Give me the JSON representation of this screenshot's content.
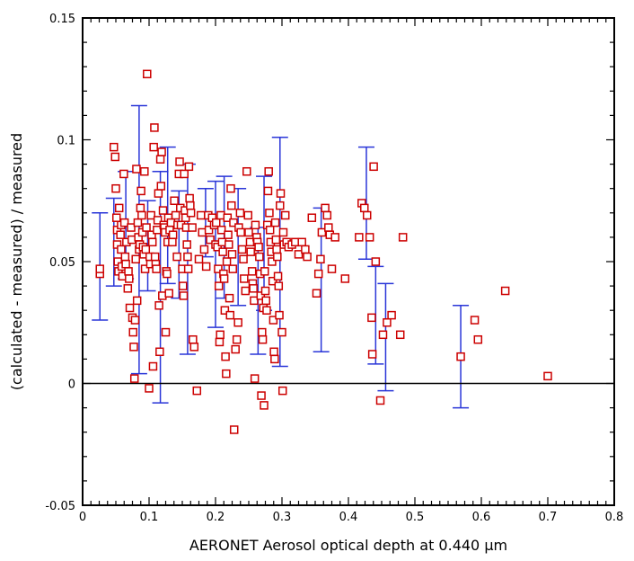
{
  "chart_data": {
    "type": "scatter",
    "title": "",
    "xlabel": "AERONET Aerosol optical depth at 0.440 µm",
    "ylabel": "(calculated - measured) / measured",
    "xlim": [
      0,
      0.8
    ],
    "ylim": [
      -0.05,
      0.15
    ],
    "xticks": [
      0,
      0.1,
      0.2,
      0.3,
      0.4,
      0.5,
      0.6,
      0.7,
      0.8
    ],
    "xtick_labels": [
      "0",
      "0.1",
      "0.2",
      "0.3",
      "0.4",
      "0.5",
      "0.6",
      "0.7",
      "0.8"
    ],
    "yticks": [
      -0.05,
      0,
      0.05,
      0.1,
      0.15
    ],
    "ytick_labels": [
      "-0.05",
      "0",
      "0.05",
      "0.1",
      "0.15"
    ],
    "grid": false,
    "zero_line": 0,
    "colors": {
      "points": "#cc0000",
      "error_bars": "#2a36d8",
      "axes": "#000000"
    },
    "error_bars": [
      {
        "x": 0.026,
        "low": 0.026,
        "high": 0.07
      },
      {
        "x": 0.047,
        "low": 0.04,
        "high": 0.076
      },
      {
        "x": 0.065,
        "low": 0.043,
        "high": 0.087
      },
      {
        "x": 0.085,
        "low": 0.004,
        "high": 0.114
      },
      {
        "x": 0.098,
        "low": 0.038,
        "high": 0.075
      },
      {
        "x": 0.117,
        "low": -0.008,
        "high": 0.087
      },
      {
        "x": 0.128,
        "low": 0.041,
        "high": 0.097
      },
      {
        "x": 0.145,
        "low": 0.035,
        "high": 0.079
      },
      {
        "x": 0.158,
        "low": 0.012,
        "high": 0.09
      },
      {
        "x": 0.185,
        "low": 0.052,
        "high": 0.08
      },
      {
        "x": 0.2,
        "low": 0.023,
        "high": 0.083
      },
      {
        "x": 0.213,
        "low": 0.035,
        "high": 0.085
      },
      {
        "x": 0.234,
        "low": 0.032,
        "high": 0.08
      },
      {
        "x": 0.264,
        "low": 0.012,
        "high": 0.064
      },
      {
        "x": 0.273,
        "low": 0.03,
        "high": 0.085
      },
      {
        "x": 0.297,
        "low": 0.007,
        "high": 0.101
      },
      {
        "x": 0.359,
        "low": 0.013,
        "high": 0.072
      },
      {
        "x": 0.427,
        "low": 0.051,
        "high": 0.097
      },
      {
        "x": 0.441,
        "low": 0.008,
        "high": 0.048
      },
      {
        "x": 0.456,
        "low": -0.003,
        "high": 0.041
      },
      {
        "x": 0.569,
        "low": -0.01,
        "high": 0.032
      }
    ],
    "points": [
      [
        0.026,
        0.045
      ],
      [
        0.026,
        0.047
      ],
      [
        0.047,
        0.097
      ],
      [
        0.049,
        0.093
      ],
      [
        0.05,
        0.08
      ],
      [
        0.051,
        0.068
      ],
      [
        0.052,
        0.063
      ],
      [
        0.052,
        0.057
      ],
      [
        0.053,
        0.05
      ],
      [
        0.054,
        0.046
      ],
      [
        0.055,
        0.072
      ],
      [
        0.057,
        0.061
      ],
      [
        0.058,
        0.065
      ],
      [
        0.058,
        0.055
      ],
      [
        0.059,
        0.048
      ],
      [
        0.06,
        0.044
      ],
      [
        0.062,
        0.086
      ],
      [
        0.063,
        0.066
      ],
      [
        0.064,
        0.052
      ],
      [
        0.065,
        0.049
      ],
      [
        0.066,
        0.058
      ],
      [
        0.068,
        0.039
      ],
      [
        0.069,
        0.046
      ],
      [
        0.07,
        0.043
      ],
      [
        0.071,
        0.031
      ],
      [
        0.073,
        0.064
      ],
      [
        0.074,
        0.059
      ],
      [
        0.075,
        0.027
      ],
      [
        0.076,
        0.021
      ],
      [
        0.077,
        0.015
      ],
      [
        0.078,
        0.002
      ],
      [
        0.079,
        0.026
      ],
      [
        0.08,
        0.051
      ],
      [
        0.081,
        0.088
      ],
      [
        0.082,
        0.034
      ],
      [
        0.083,
        0.066
      ],
      [
        0.084,
        0.06
      ],
      [
        0.085,
        0.055
      ],
      [
        0.086,
        0.057
      ],
      [
        0.087,
        0.072
      ],
      [
        0.088,
        0.079
      ],
      [
        0.089,
        0.069
      ],
      [
        0.09,
        0.062
      ],
      [
        0.091,
        0.056
      ],
      [
        0.092,
        0.053
      ],
      [
        0.093,
        0.087
      ],
      [
        0.094,
        0.047
      ],
      [
        0.095,
        0.055
      ],
      [
        0.096,
        0.064
      ],
      [
        0.097,
        0.127
      ],
      [
        0.1,
        -0.002
      ],
      [
        0.101,
        0.052
      ],
      [
        0.102,
        0.049
      ],
      [
        0.103,
        0.069
      ],
      [
        0.104,
        0.061
      ],
      [
        0.105,
        0.058
      ],
      [
        0.106,
        0.007
      ],
      [
        0.107,
        0.097
      ],
      [
        0.108,
        0.105
      ],
      [
        0.109,
        0.052
      ],
      [
        0.11,
        0.049
      ],
      [
        0.111,
        0.047
      ],
      [
        0.112,
        0.063
      ],
      [
        0.113,
        0.067
      ],
      [
        0.114,
        0.078
      ],
      [
        0.115,
        0.032
      ],
      [
        0.116,
        0.013
      ],
      [
        0.117,
        0.092
      ],
      [
        0.118,
        0.081
      ],
      [
        0.119,
        0.095
      ],
      [
        0.12,
        0.036
      ],
      [
        0.121,
        0.071
      ],
      [
        0.122,
        0.065
      ],
      [
        0.123,
        0.064
      ],
      [
        0.124,
        0.062
      ],
      [
        0.125,
        0.021
      ],
      [
        0.126,
        0.046
      ],
      [
        0.127,
        0.045
      ],
      [
        0.128,
        0.058
      ],
      [
        0.129,
        0.068
      ],
      [
        0.13,
        0.037
      ],
      [
        0.131,
        0.063
      ],
      [
        0.133,
        0.066
      ],
      [
        0.135,
        0.058
      ],
      [
        0.136,
        0.061
      ],
      [
        0.138,
        0.075
      ],
      [
        0.14,
        0.069
      ],
      [
        0.142,
        0.052
      ],
      [
        0.143,
        0.065
      ],
      [
        0.145,
        0.086
      ],
      [
        0.146,
        0.091
      ],
      [
        0.147,
        0.072
      ],
      [
        0.148,
        0.065
      ],
      [
        0.15,
        0.047
      ],
      [
        0.151,
        0.04
      ],
      [
        0.152,
        0.036
      ],
      [
        0.153,
        0.086
      ],
      [
        0.154,
        0.071
      ],
      [
        0.155,
        0.068
      ],
      [
        0.156,
        0.064
      ],
      [
        0.157,
        0.057
      ],
      [
        0.158,
        0.052
      ],
      [
        0.159,
        0.047
      ],
      [
        0.16,
        0.089
      ],
      [
        0.161,
        0.076
      ],
      [
        0.162,
        0.073
      ],
      [
        0.163,
        0.07
      ],
      [
        0.165,
        0.064
      ],
      [
        0.166,
        0.018
      ],
      [
        0.168,
        0.015
      ],
      [
        0.172,
        -0.003
      ],
      [
        0.175,
        0.051
      ],
      [
        0.178,
        0.069
      ],
      [
        0.18,
        0.062
      ],
      [
        0.183,
        0.055
      ],
      [
        0.186,
        0.048
      ],
      [
        0.189,
        0.069
      ],
      [
        0.19,
        0.063
      ],
      [
        0.192,
        0.059
      ],
      [
        0.195,
        0.068
      ],
      [
        0.198,
        0.065
      ],
      [
        0.2,
        0.057
      ],
      [
        0.201,
        0.066
      ],
      [
        0.203,
        0.056
      ],
      [
        0.204,
        0.047
      ],
      [
        0.205,
        0.04
      ],
      [
        0.206,
        0.017
      ],
      [
        0.207,
        0.02
      ],
      [
        0.208,
        0.069
      ],
      [
        0.209,
        0.063
      ],
      [
        0.21,
        0.058
      ],
      [
        0.211,
        0.054
      ],
      [
        0.212,
        0.045
      ],
      [
        0.213,
        0.043
      ],
      [
        0.214,
        0.03
      ],
      [
        0.215,
        0.011
      ],
      [
        0.216,
        0.004
      ],
      [
        0.217,
        0.05
      ],
      [
        0.218,
        0.068
      ],
      [
        0.219,
        0.061
      ],
      [
        0.22,
        0.057
      ],
      [
        0.221,
        0.035
      ],
      [
        0.222,
        0.028
      ],
      [
        0.223,
        0.08
      ],
      [
        0.224,
        0.073
      ],
      [
        0.225,
        0.053
      ],
      [
        0.226,
        0.047
      ],
      [
        0.227,
        0.066
      ],
      [
        0.228,
        -0.019
      ],
      [
        0.23,
        0.014
      ],
      [
        0.232,
        0.018
      ],
      [
        0.234,
        0.025
      ],
      [
        0.235,
        0.064
      ],
      [
        0.237,
        0.07
      ],
      [
        0.238,
        0.062
      ],
      [
        0.24,
        0.055
      ],
      [
        0.242,
        0.051
      ],
      [
        0.243,
        0.043
      ],
      [
        0.245,
        0.038
      ],
      [
        0.247,
        0.087
      ],
      [
        0.249,
        0.069
      ],
      [
        0.25,
        0.062
      ],
      [
        0.252,
        0.058
      ],
      [
        0.253,
        0.054
      ],
      [
        0.255,
        0.046
      ],
      [
        0.256,
        0.041
      ],
      [
        0.257,
        0.039
      ],
      [
        0.258,
        0.034
      ],
      [
        0.259,
        0.002
      ],
      [
        0.26,
        0.065
      ],
      [
        0.262,
        0.06
      ],
      [
        0.263,
        0.058
      ],
      [
        0.265,
        0.056
      ],
      [
        0.266,
        0.052
      ],
      [
        0.267,
        0.045
      ],
      [
        0.268,
        0.036
      ],
      [
        0.269,
        -0.005
      ],
      [
        0.27,
        0.021
      ],
      [
        0.271,
        0.018
      ],
      [
        0.272,
        0.031
      ],
      [
        0.273,
        -0.009
      ],
      [
        0.274,
        0.046
      ],
      [
        0.275,
        0.038
      ],
      [
        0.276,
        0.034
      ],
      [
        0.277,
        0.03
      ],
      [
        0.278,
        0.065
      ],
      [
        0.279,
        0.079
      ],
      [
        0.28,
        0.087
      ],
      [
        0.281,
        0.07
      ],
      [
        0.282,
        0.063
      ],
      [
        0.283,
        0.058
      ],
      [
        0.284,
        0.054
      ],
      [
        0.285,
        0.05
      ],
      [
        0.286,
        0.042
      ],
      [
        0.287,
        0.026
      ],
      [
        0.288,
        0.013
      ],
      [
        0.289,
        0.01
      ],
      [
        0.29,
        0.066
      ],
      [
        0.291,
        0.059
      ],
      [
        0.292,
        0.055
      ],
      [
        0.293,
        0.052
      ],
      [
        0.294,
        0.044
      ],
      [
        0.295,
        0.04
      ],
      [
        0.296,
        0.028
      ],
      [
        0.297,
        0.073
      ],
      [
        0.298,
        0.078
      ],
      [
        0.3,
        0.021
      ],
      [
        0.301,
        -0.003
      ],
      [
        0.302,
        0.062
      ],
      [
        0.303,
        0.057
      ],
      [
        0.305,
        0.069
      ],
      [
        0.307,
        0.058
      ],
      [
        0.31,
        0.056
      ],
      [
        0.315,
        0.057
      ],
      [
        0.32,
        0.058
      ],
      [
        0.325,
        0.053
      ],
      [
        0.33,
        0.058
      ],
      [
        0.335,
        0.055
      ],
      [
        0.338,
        0.052
      ],
      [
        0.345,
        0.068
      ],
      [
        0.352,
        0.037
      ],
      [
        0.355,
        0.045
      ],
      [
        0.358,
        0.051
      ],
      [
        0.36,
        0.062
      ],
      [
        0.365,
        0.072
      ],
      [
        0.368,
        0.069
      ],
      [
        0.37,
        0.064
      ],
      [
        0.372,
        0.061
      ],
      [
        0.375,
        0.047
      ],
      [
        0.38,
        0.06
      ],
      [
        0.395,
        0.043
      ],
      [
        0.416,
        0.06
      ],
      [
        0.42,
        0.074
      ],
      [
        0.424,
        0.072
      ],
      [
        0.428,
        0.069
      ],
      [
        0.432,
        0.06
      ],
      [
        0.435,
        0.027
      ],
      [
        0.436,
        0.012
      ],
      [
        0.438,
        0.089
      ],
      [
        0.441,
        0.05
      ],
      [
        0.448,
        -0.007
      ],
      [
        0.452,
        0.02
      ],
      [
        0.458,
        0.025
      ],
      [
        0.465,
        0.028
      ],
      [
        0.478,
        0.02
      ],
      [
        0.482,
        0.06
      ],
      [
        0.569,
        0.011
      ],
      [
        0.59,
        0.026
      ],
      [
        0.595,
        0.018
      ],
      [
        0.636,
        0.038
      ],
      [
        0.7,
        0.003
      ]
    ]
  }
}
